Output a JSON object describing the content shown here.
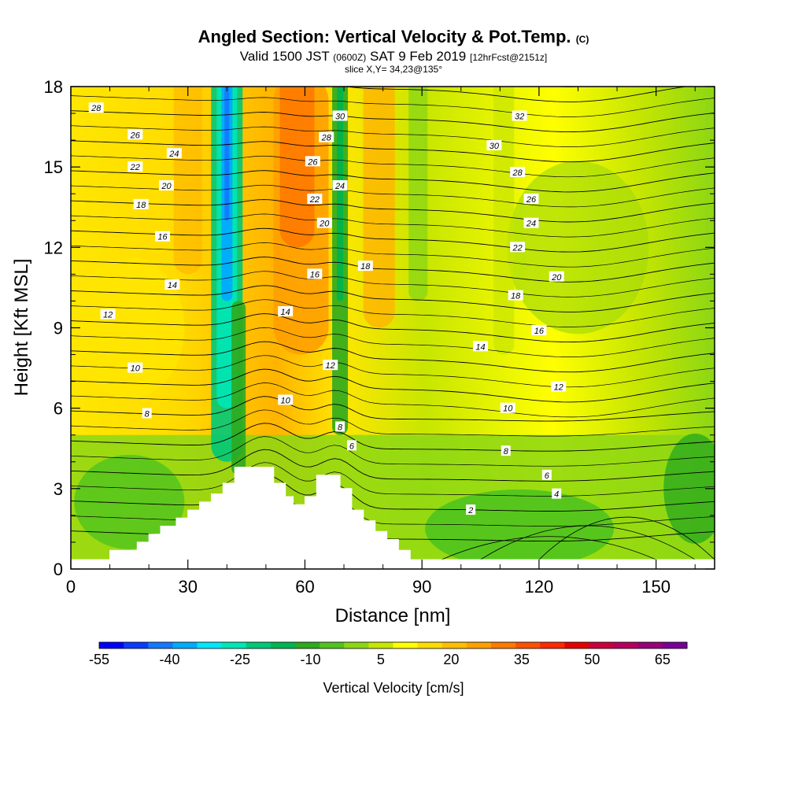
{
  "title": {
    "main": "Angled Section: Vertical Velocity & Pot.Temp.",
    "main_suffix": "(C)",
    "valid_prefix": "Valid 1500 JST",
    "valid_zulu": "(0600Z)",
    "valid_date": "SAT 9 Feb 2019",
    "valid_fcst": "[12hrFcst@2151z]",
    "slice": "slice X,Y= 34,23@135°"
  },
  "chart_data": {
    "type": "heatmap",
    "xlabel": "Distance [nm]",
    "ylabel": "Height [Kft MSL]",
    "xlim": [
      0,
      165
    ],
    "ylim": [
      0,
      18
    ],
    "x_ticks": [
      0,
      30,
      60,
      90,
      120,
      150
    ],
    "x_tick_labels": [
      "0",
      "30",
      "60",
      "90",
      "120",
      "150"
    ],
    "y_ticks": [
      0,
      3,
      6,
      9,
      12,
      15,
      18
    ],
    "y_tick_labels": [
      "0",
      "3",
      "6",
      "9",
      "12",
      "15",
      "18"
    ],
    "colorbar": {
      "title": "Vertical Velocity [cm/s]",
      "tick_values": [
        -55,
        -40,
        -25,
        -10,
        5,
        20,
        35,
        50,
        65
      ],
      "tick_labels": [
        "-55",
        "-40",
        "-25",
        "-10",
        "5",
        "20",
        "35",
        "50",
        "65"
      ],
      "colors": [
        "#0000ff",
        "#0a3cff",
        "#1478ff",
        "#00aaff",
        "#00e6ff",
        "#00e6b4",
        "#00c878",
        "#00b450",
        "#2daa1e",
        "#50c31e",
        "#8cd714",
        "#c8e600",
        "#ffff00",
        "#ffdc00",
        "#ffbe00",
        "#ffa000",
        "#ff7800",
        "#ff5000",
        "#ff2800",
        "#e60000",
        "#c8003c",
        "#b4005a",
        "#960078",
        "#780096"
      ]
    },
    "updraft_columns": [
      {
        "x_center": 40,
        "min_value": -50,
        "description": "strong downdraft column"
      },
      {
        "x_center": 58,
        "max_value": 40
      },
      {
        "x_center": 69,
        "min_value": -20
      },
      {
        "x_center": 78,
        "max_value": 30
      }
    ],
    "isentropes": [
      2,
      4,
      6,
      8,
      10,
      12,
      14,
      16,
      18,
      20,
      22,
      24,
      26,
      28,
      30,
      32
    ],
    "contour_labels": [
      {
        "text": "28",
        "x": 6.5,
        "y": 17.2
      },
      {
        "text": "26",
        "x": 16.5,
        "y": 16.2
      },
      {
        "text": "24",
        "x": 26.5,
        "y": 15.5
      },
      {
        "text": "22",
        "x": 16.5,
        "y": 15.0
      },
      {
        "text": "20",
        "x": 24.5,
        "y": 14.3
      },
      {
        "text": "18",
        "x": 18,
        "y": 13.6
      },
      {
        "text": "16",
        "x": 23.5,
        "y": 12.4
      },
      {
        "text": "14",
        "x": 26,
        "y": 10.6
      },
      {
        "text": "12",
        "x": 9.5,
        "y": 9.5
      },
      {
        "text": "10",
        "x": 16.5,
        "y": 7.5
      },
      {
        "text": "8",
        "x": 19.5,
        "y": 5.8
      },
      {
        "text": "30",
        "x": 69,
        "y": 16.9
      },
      {
        "text": "28",
        "x": 65.5,
        "y": 16.1
      },
      {
        "text": "26",
        "x": 62,
        "y": 15.2
      },
      {
        "text": "24",
        "x": 69,
        "y": 14.3
      },
      {
        "text": "22",
        "x": 62.5,
        "y": 13.8
      },
      {
        "text": "20",
        "x": 65,
        "y": 12.9
      },
      {
        "text": "18",
        "x": 75.5,
        "y": 11.3
      },
      {
        "text": "16",
        "x": 62.5,
        "y": 11.0
      },
      {
        "text": "14",
        "x": 55,
        "y": 9.6
      },
      {
        "text": "12",
        "x": 66.5,
        "y": 7.6
      },
      {
        "text": "10",
        "x": 55,
        "y": 6.3
      },
      {
        "text": "8",
        "x": 69,
        "y": 5.3
      },
      {
        "text": "6",
        "x": 72,
        "y": 4.6
      },
      {
        "text": "32",
        "x": 115,
        "y": 16.9
      },
      {
        "text": "30",
        "x": 108.5,
        "y": 15.8
      },
      {
        "text": "28",
        "x": 114.5,
        "y": 14.8
      },
      {
        "text": "26",
        "x": 118,
        "y": 13.8
      },
      {
        "text": "24",
        "x": 118,
        "y": 12.9
      },
      {
        "text": "22",
        "x": 114.5,
        "y": 12.0
      },
      {
        "text": "20",
        "x": 124.5,
        "y": 10.9
      },
      {
        "text": "18",
        "x": 114,
        "y": 10.2
      },
      {
        "text": "16",
        "x": 120,
        "y": 8.9
      },
      {
        "text": "14",
        "x": 105,
        "y": 8.3
      },
      {
        "text": "12",
        "x": 125,
        "y": 6.8
      },
      {
        "text": "10",
        "x": 112,
        "y": 6.0
      },
      {
        "text": "8",
        "x": 111.5,
        "y": 4.4
      },
      {
        "text": "6",
        "x": 122,
        "y": 3.5
      },
      {
        "text": "4",
        "x": 124.5,
        "y": 2.8
      },
      {
        "text": "2",
        "x": 102.5,
        "y": 2.2
      }
    ],
    "terrain": [
      [
        0,
        0.35
      ],
      [
        10,
        0.35
      ],
      [
        10,
        0.7
      ],
      [
        17,
        0.7
      ],
      [
        17,
        1.0
      ],
      [
        20,
        1.0
      ],
      [
        20,
        1.3
      ],
      [
        23,
        1.3
      ],
      [
        23,
        1.6
      ],
      [
        27,
        1.6
      ],
      [
        27,
        1.9
      ],
      [
        30,
        1.9
      ],
      [
        30,
        2.2
      ],
      [
        33,
        2.2
      ],
      [
        33,
        2.5
      ],
      [
        36,
        2.5
      ],
      [
        36,
        2.8
      ],
      [
        39,
        2.8
      ],
      [
        39,
        3.2
      ],
      [
        42,
        3.2
      ],
      [
        42,
        3.8
      ],
      [
        52,
        3.8
      ],
      [
        52,
        3.2
      ],
      [
        55,
        3.2
      ],
      [
        55,
        2.7
      ],
      [
        57,
        2.7
      ],
      [
        57,
        2.4
      ],
      [
        60,
        2.4
      ],
      [
        60,
        2.7
      ],
      [
        63,
        2.7
      ],
      [
        63,
        3.5
      ],
      [
        69,
        3.5
      ],
      [
        69,
        3.0
      ],
      [
        72,
        3.0
      ],
      [
        72,
        2.2
      ],
      [
        75,
        2.2
      ],
      [
        75,
        1.8
      ],
      [
        78,
        1.8
      ],
      [
        78,
        1.4
      ],
      [
        81,
        1.4
      ],
      [
        81,
        1.1
      ],
      [
        84,
        1.1
      ],
      [
        84,
        0.7
      ],
      [
        87,
        0.7
      ],
      [
        87,
        0.35
      ],
      [
        165,
        0.35
      ]
    ]
  }
}
